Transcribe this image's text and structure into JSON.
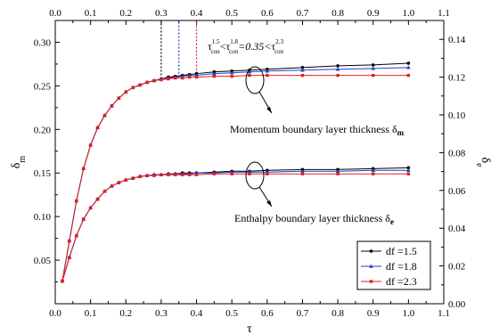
{
  "chart_data": {
    "type": "line",
    "xlabel": "τ",
    "ylabel_left": "δ",
    "ylabel_left_sub": "m",
    "ylabel_right": "δ",
    "ylabel_right_sub": "e",
    "xlim": [
      0.0,
      1.1
    ],
    "ylim_left": [
      0.0,
      0.325
    ],
    "ylim_right": [
      0.0,
      0.15
    ],
    "x_ticks_bottom": [
      "0.0",
      "0.1",
      "0.2",
      "0.3",
      "0.4",
      "0.5",
      "0.6",
      "0.7",
      "0.8",
      "0.9",
      "1.0",
      "1.1"
    ],
    "x_ticks_top": [
      "0.0",
      "0.1",
      "0.2",
      "0.3",
      "0.4",
      "0.5",
      "0.6",
      "0.7",
      "0.8",
      "0.9",
      "1.0",
      "1.1"
    ],
    "y_ticks_left": [
      "0.05",
      "0.10",
      "0.15",
      "0.20",
      "0.25",
      "0.30"
    ],
    "y_ticks_right": [
      "0.00",
      "0.02",
      "0.04",
      "0.06",
      "0.08",
      "0.10",
      "0.12",
      "0.14"
    ],
    "grid": false,
    "legend_position": "bottom-right",
    "x": [
      0.02,
      0.04,
      0.06,
      0.08,
      0.1,
      0.12,
      0.14,
      0.16,
      0.18,
      0.2,
      0.22,
      0.24,
      0.26,
      0.28,
      0.3,
      0.32,
      0.34,
      0.36,
      0.38,
      0.4,
      0.45,
      0.5,
      0.55,
      0.6,
      0.7,
      0.8,
      0.9,
      1.0
    ],
    "series": [
      {
        "name": "df =1.5",
        "color": "#000000",
        "marker": "circle",
        "momentum_values": [
          0.026,
          0.072,
          0.118,
          0.155,
          0.182,
          0.202,
          0.216,
          0.227,
          0.236,
          0.243,
          0.248,
          0.251,
          0.254,
          0.256,
          0.258,
          0.26,
          0.261,
          0.262,
          0.263,
          0.264,
          0.266,
          0.267,
          0.268,
          0.269,
          0.271,
          0.273,
          0.274,
          0.276
        ],
        "enthalpy_values": [
          0.026,
          0.053,
          0.078,
          0.097,
          0.11,
          0.12,
          0.129,
          0.135,
          0.139,
          0.142,
          0.144,
          0.146,
          0.147,
          0.148,
          0.148,
          0.149,
          0.149,
          0.15,
          0.15,
          0.15,
          0.151,
          0.152,
          0.152,
          0.153,
          0.154,
          0.154,
          0.155,
          0.156
        ]
      },
      {
        "name": "df =1.8",
        "color": "#1f3fd6",
        "marker": "triangle",
        "momentum_values": [
          0.026,
          0.072,
          0.118,
          0.155,
          0.182,
          0.202,
          0.216,
          0.227,
          0.236,
          0.243,
          0.248,
          0.251,
          0.254,
          0.256,
          0.258,
          0.259,
          0.26,
          0.261,
          0.262,
          0.262,
          0.264,
          0.265,
          0.266,
          0.267,
          0.268,
          0.269,
          0.27,
          0.271
        ],
        "enthalpy_values": [
          0.026,
          0.053,
          0.078,
          0.097,
          0.11,
          0.12,
          0.129,
          0.135,
          0.139,
          0.142,
          0.144,
          0.146,
          0.147,
          0.148,
          0.148,
          0.149,
          0.149,
          0.149,
          0.149,
          0.15,
          0.15,
          0.151,
          0.151,
          0.151,
          0.152,
          0.152,
          0.153,
          0.153
        ]
      },
      {
        "name": "df =2.3",
        "color": "#e02020",
        "marker": "square",
        "momentum_values": [
          0.026,
          0.072,
          0.118,
          0.155,
          0.182,
          0.202,
          0.216,
          0.227,
          0.236,
          0.243,
          0.248,
          0.251,
          0.254,
          0.256,
          0.257,
          0.258,
          0.259,
          0.259,
          0.26,
          0.26,
          0.261,
          0.261,
          0.262,
          0.262,
          0.262,
          0.262,
          0.262,
          0.262
        ],
        "enthalpy_values": [
          0.026,
          0.053,
          0.078,
          0.097,
          0.11,
          0.12,
          0.129,
          0.135,
          0.139,
          0.142,
          0.144,
          0.146,
          0.147,
          0.147,
          0.148,
          0.148,
          0.148,
          0.148,
          0.148,
          0.148,
          0.149,
          0.149,
          0.149,
          0.149,
          0.149,
          0.149,
          0.149,
          0.149
        ]
      }
    ],
    "critical_lines": [
      {
        "x": 0.3,
        "color": "#000000",
        "y_from": 0.258,
        "y_to": 0.325
      },
      {
        "x": 0.35,
        "color": "#1f3fd6",
        "y_from": 0.26,
        "y_to": 0.325
      },
      {
        "x": 0.4,
        "color": "#e02020",
        "y_from": 0.26,
        "y_to": 0.325
      }
    ],
    "annotations": {
      "tau_relation": {
        "tau1": "τ",
        "tau1_sup": "1.5",
        "tau1_sub": "con",
        "lt1": "<",
        "tau2": "τ",
        "tau2_sup": "1.8",
        "tau2_sub": "con",
        "eq": "=0.35<",
        "tau3": "τ",
        "tau3_sup": "2.3",
        "tau3_sub": "con"
      },
      "momentum_label": "Momentum boundary layer thickness δ",
      "momentum_label_sub": "m",
      "enthalpy_label": "Enthalpy boundary layer thickness δ",
      "enthalpy_label_sub": "e"
    }
  }
}
